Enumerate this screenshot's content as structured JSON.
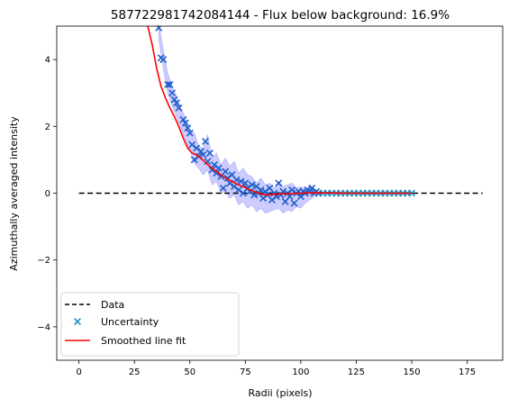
{
  "chart_data": {
    "type": "scatter",
    "title": "587722981742084144 - Flux below background: 16.9%",
    "xlabel": "Radii (pixels)",
    "ylabel": "Azimuthally averaged intensity",
    "xlim": [
      -10,
      191
    ],
    "ylim": [
      -5,
      5
    ],
    "xticks": [
      0,
      25,
      50,
      75,
      100,
      125,
      150,
      175
    ],
    "yticks": [
      -4,
      -2,
      0,
      2,
      4
    ],
    "xtick_labels": [
      "0",
      "25",
      "50",
      "75",
      "100",
      "125",
      "150",
      "175"
    ],
    "ytick_labels": [
      "−4",
      "−2",
      "0",
      "2",
      "4"
    ],
    "grid": false,
    "legend": {
      "placement": "lower-left",
      "entries": [
        {
          "label": "Data",
          "style": "dashed-line",
          "color": "#000000"
        },
        {
          "label": "Uncertainty",
          "style": "x-marker",
          "color": "#1f77b4"
        },
        {
          "label": "Smoothed line fit",
          "style": "line",
          "color": "#ff0000"
        }
      ]
    },
    "data_line": {
      "x": [
        0,
        182
      ],
      "y": [
        0,
        0
      ]
    },
    "smoothed_fit": {
      "x": [
        31,
        33,
        35,
        37,
        39,
        41,
        43,
        45,
        47,
        49,
        51,
        53,
        55,
        57,
        59,
        61,
        63,
        65,
        67,
        69,
        71,
        73,
        75,
        77,
        79,
        81,
        83,
        85,
        87,
        90,
        93,
        96,
        100,
        105,
        110,
        120,
        130,
        140,
        150
      ],
      "y": [
        5.0,
        4.45,
        3.75,
        3.2,
        2.85,
        2.55,
        2.3,
        2.0,
        1.65,
        1.35,
        1.2,
        1.15,
        1.05,
        0.92,
        0.8,
        0.7,
        0.6,
        0.5,
        0.42,
        0.35,
        0.28,
        0.22,
        0.17,
        0.1,
        0.05,
        0.0,
        -0.04,
        -0.05,
        -0.04,
        -0.03,
        -0.02,
        -0.01,
        0.0,
        0.01,
        0.01,
        0.0,
        0.0,
        0.0,
        0.0
      ]
    },
    "uncertainty_band": {
      "color": "#0000ff",
      "x": [
        36,
        38,
        40,
        42,
        44,
        46,
        48,
        50,
        52,
        54,
        56,
        58,
        60,
        62,
        64,
        66,
        68,
        70,
        72,
        74,
        76,
        78,
        80,
        82,
        84,
        86,
        88,
        90,
        92,
        94,
        96,
        98,
        100,
        102,
        104,
        106
      ],
      "upper": [
        5.1,
        4.3,
        3.6,
        3.2,
        2.9,
        2.55,
        2.25,
        1.9,
        1.8,
        1.4,
        1.35,
        1.75,
        1.05,
        1.2,
        0.85,
        1.05,
        0.8,
        0.95,
        0.6,
        0.75,
        0.55,
        0.5,
        0.3,
        0.45,
        0.25,
        0.3,
        0.15,
        0.35,
        0.2,
        0.25,
        0.3,
        0.15,
        0.2,
        0.1,
        0.25,
        0.15
      ],
      "lower": [
        4.6,
        3.75,
        3.0,
        2.6,
        2.3,
        1.95,
        1.6,
        1.3,
        0.9,
        0.75,
        0.55,
        0.7,
        0.25,
        0.35,
        0.0,
        0.05,
        -0.15,
        -0.05,
        -0.35,
        -0.25,
        -0.45,
        -0.35,
        -0.55,
        -0.45,
        -0.6,
        -0.55,
        -0.5,
        -0.45,
        -0.6,
        -0.5,
        -0.55,
        -0.4,
        -0.45,
        -0.3,
        -0.2,
        -0.1
      ]
    },
    "uncertainty_points": {
      "x": [
        36,
        37,
        38,
        40,
        41,
        42,
        43,
        44,
        45,
        47,
        48,
        49,
        50,
        51,
        52,
        53,
        54,
        55,
        56,
        57,
        58,
        59,
        60,
        61,
        62,
        63,
        64,
        65,
        66,
        67,
        68,
        69,
        70,
        71,
        72,
        73,
        74,
        75,
        76,
        77,
        78,
        79,
        80,
        81,
        82,
        83,
        84,
        85,
        86,
        87,
        88,
        89,
        90,
        91,
        92,
        93,
        94,
        95,
        96,
        97,
        98,
        99,
        100,
        101,
        102,
        103,
        104,
        105,
        106,
        107,
        108,
        110,
        112,
        114,
        116,
        118,
        120,
        122,
        124,
        126,
        128,
        130,
        132,
        134,
        136,
        138,
        140,
        142,
        144,
        146,
        148,
        150
      ],
      "y": [
        4.95,
        4.05,
        4.0,
        3.25,
        3.25,
        3.0,
        2.8,
        2.7,
        2.55,
        2.2,
        2.1,
        1.95,
        1.8,
        1.45,
        1.0,
        1.35,
        1.1,
        1.25,
        1.15,
        1.55,
        0.95,
        1.2,
        0.7,
        0.85,
        0.6,
        0.75,
        0.5,
        0.15,
        0.65,
        0.45,
        0.3,
        0.55,
        0.2,
        0.4,
        0.1,
        0.35,
        0.0,
        0.3,
        0.15,
        0.05,
        0.25,
        -0.05,
        0.2,
        0.0,
        0.1,
        -0.15,
        0.05,
        -0.05,
        0.15,
        -0.2,
        0.0,
        -0.1,
        0.3,
        -0.05,
        0.05,
        -0.25,
        0.0,
        -0.1,
        0.1,
        -0.3,
        0.0,
        0.05,
        -0.1,
        0.05,
        0.0,
        0.1,
        0.05,
        0.15,
        0.0,
        0.05,
        0.0,
        0.0,
        0.0,
        0.0,
        0.0,
        0.0,
        0.0,
        0.0,
        0.0,
        0.0,
        0.0,
        0.0,
        0.0,
        0.0,
        0.0,
        0.0,
        0.0,
        0.0,
        0.0,
        0.0,
        0.0,
        0.0
      ]
    }
  },
  "colors": {
    "data_line": "#000000",
    "marker_dense": "#1f5fc8",
    "marker_sparse": "#1f8fbf",
    "fit_line": "#ff0000",
    "band_fill": "#0000ff"
  }
}
